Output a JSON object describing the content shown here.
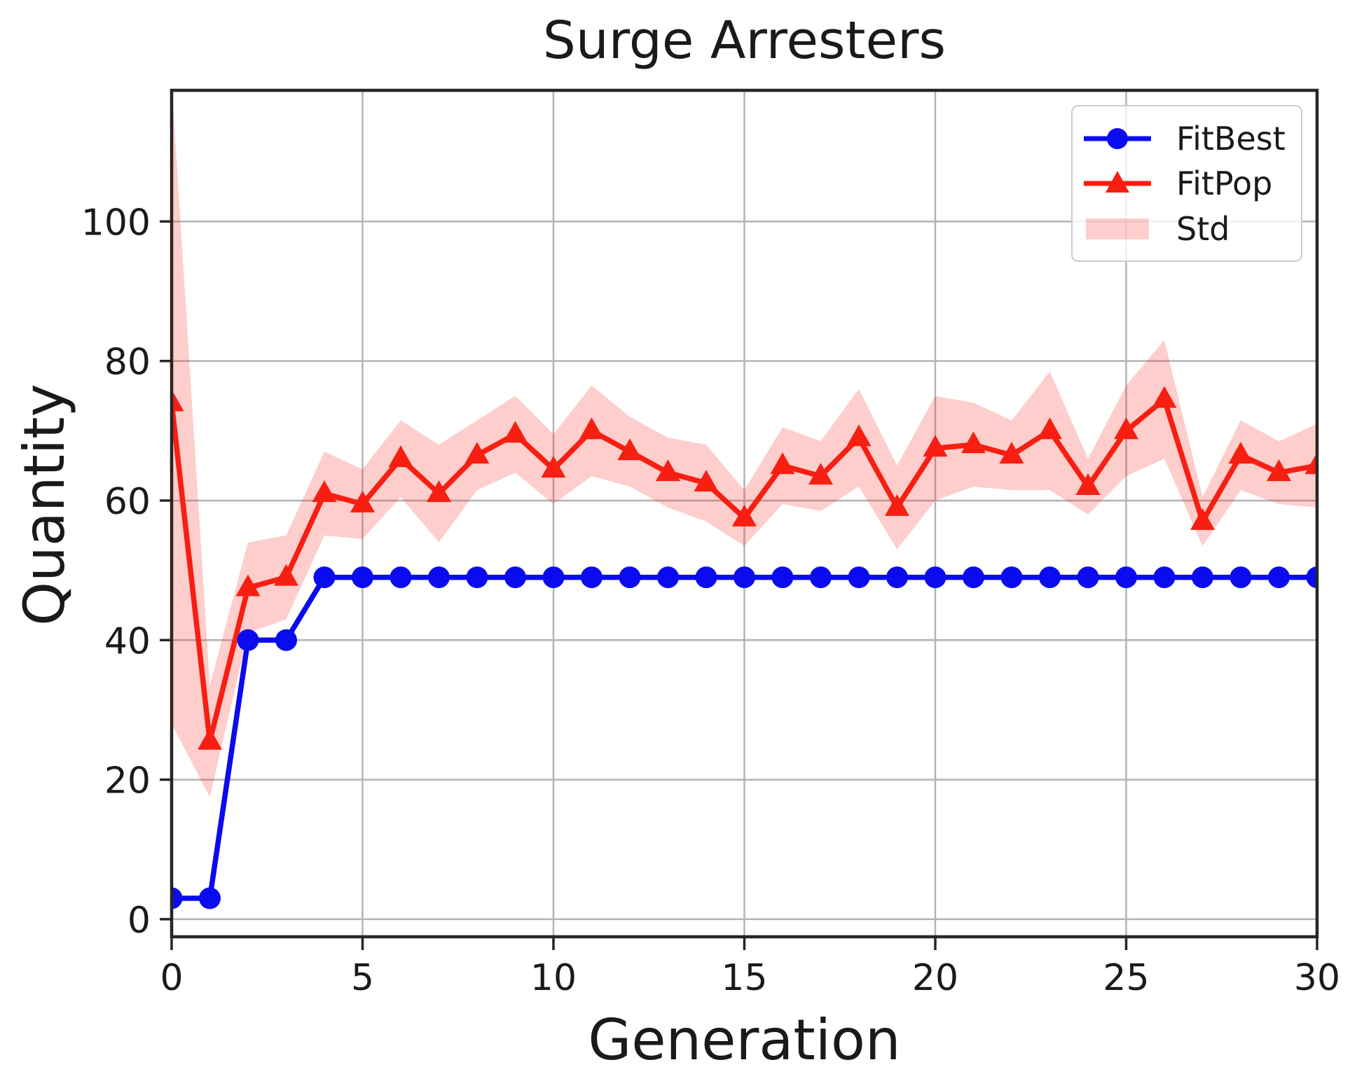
{
  "figure": {
    "background": "#ffffff",
    "text_color": "#1a1a1a",
    "border_color": "#262626",
    "grid_color": "#b3b3b3"
  },
  "chart_data": {
    "type": "line",
    "title": "Surge Arresters",
    "xlabel": "Generation",
    "ylabel": "Quantity",
    "x": [
      0,
      1,
      2,
      3,
      4,
      5,
      6,
      7,
      8,
      9,
      10,
      11,
      12,
      13,
      14,
      15,
      16,
      17,
      18,
      19,
      20,
      21,
      22,
      23,
      24,
      25,
      26,
      27,
      28,
      29,
      30
    ],
    "series": [
      {
        "name": "FitBest",
        "type": "line",
        "color": "#0b0bef",
        "marker": "circle",
        "values": [
          3,
          3,
          40,
          40,
          49,
          49,
          49,
          49,
          49,
          49,
          49,
          49,
          49,
          49,
          49,
          49,
          49,
          49,
          49,
          49,
          49,
          49,
          49,
          49,
          49,
          49,
          49,
          49,
          49,
          49,
          49
        ]
      },
      {
        "name": "FitPop",
        "type": "line",
        "color": "#f71e12",
        "marker": "triangle",
        "values": [
          74,
          25.5,
          47.5,
          49,
          61,
          59.5,
          66,
          61,
          66.5,
          69.5,
          64.5,
          70,
          67,
          64,
          62.5,
          57.5,
          65,
          63.5,
          69,
          59,
          67.5,
          68,
          66.5,
          70,
          62,
          70,
          74.5,
          57,
          66.5,
          64,
          65
        ]
      },
      {
        "name": "Std",
        "type": "band",
        "around": "FitPop",
        "color": "rgba(247,30,18,0.22)",
        "half_widths": [
          46,
          8,
          6.5,
          6,
          6,
          5,
          5.5,
          7,
          5,
          5.5,
          5,
          6.5,
          5,
          5,
          5.5,
          4,
          5.5,
          5,
          7,
          6,
          7.5,
          6,
          5,
          8.5,
          4,
          6.5,
          8.5,
          3.5,
          5,
          4.5,
          6
        ]
      }
    ],
    "xticks": [
      0,
      5,
      10,
      15,
      20,
      25,
      30
    ],
    "yticks": [
      0,
      20,
      40,
      60,
      80,
      100
    ],
    "xlim": [
      0,
      30
    ],
    "ylim": [
      -2.52,
      119.7
    ],
    "grid": true,
    "legend": {
      "position": "upper right",
      "entries": [
        "FitBest",
        "FitPop",
        "Std"
      ]
    }
  }
}
